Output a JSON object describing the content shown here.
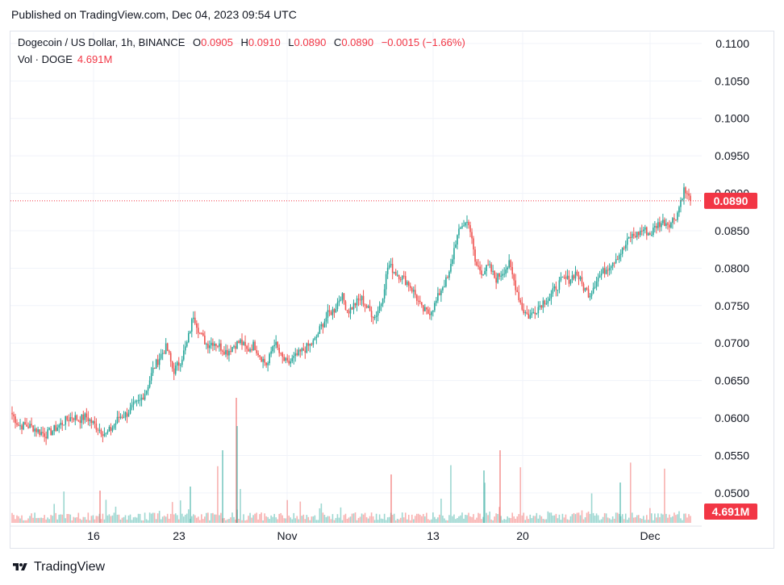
{
  "header": {
    "published": "Published on TradingView.com, Dec 04, 2023 09:54 UTC"
  },
  "legend": {
    "symbol": "Dogecoin / US Dollar, 1h, BINANCE",
    "o_label": "O",
    "o_value": "0.0905",
    "h_label": "H",
    "h_value": "0.0910",
    "l_label": "L",
    "l_value": "0.0890",
    "c_label": "C",
    "c_value": "0.0890",
    "change": "−0.0015 (−1.66%)",
    "vol_label": "Vol · DOGE",
    "vol_value": "4.691M"
  },
  "price_tag": "0.0890",
  "volume_tag": "4.691M",
  "footer": {
    "brand": "TradingView"
  },
  "colors": {
    "up": "#26a69a",
    "down": "#ef5350",
    "last_price": "#f23645",
    "grid": "#f0f3fa",
    "axis_text": "#131722"
  },
  "chart_data": {
    "type": "candlestick",
    "title": "Dogecoin / US Dollar, 1h, BINANCE",
    "x_ticks": [
      "16",
      "23",
      "Nov",
      "13",
      "20",
      "Dec"
    ],
    "y_ticks": [
      "0.1100",
      "0.1050",
      "0.1000",
      "0.0950",
      "0.0900",
      "0.0850",
      "0.0800",
      "0.0750",
      "0.0700",
      "0.0650",
      "0.0600",
      "0.0550",
      "0.0500"
    ],
    "ylim": [
      0.046,
      0.1115
    ],
    "last_price": 0.089,
    "volume_last": "4.691M",
    "grid": true,
    "series": [
      {
        "name": "DOGEUSD",
        "close_path": [
          0.0605,
          0.059,
          0.059,
          0.0588,
          0.0582,
          0.0578,
          0.0583,
          0.059,
          0.0597,
          0.0602,
          0.0598,
          0.0602,
          0.0593,
          0.0585,
          0.0578,
          0.0588,
          0.0602,
          0.0605,
          0.0615,
          0.0622,
          0.0638,
          0.0665,
          0.0682,
          0.0695,
          0.0662,
          0.0675,
          0.0698,
          0.0738,
          0.0712,
          0.0698,
          0.0702,
          0.0695,
          0.0688,
          0.0697,
          0.0702,
          0.069,
          0.0698,
          0.0682,
          0.067,
          0.0703,
          0.0682,
          0.0672,
          0.068,
          0.0688,
          0.0695,
          0.0702,
          0.0722,
          0.0738,
          0.0745,
          0.0765,
          0.0742,
          0.0752,
          0.076,
          0.0745,
          0.0735,
          0.0755,
          0.0805,
          0.0795,
          0.0788,
          0.078,
          0.0765,
          0.0745,
          0.074,
          0.0752,
          0.0775,
          0.0788,
          0.0835,
          0.0858,
          0.0862,
          0.0805,
          0.0795,
          0.0802,
          0.0785,
          0.0795,
          0.0805,
          0.0775,
          0.0745,
          0.0735,
          0.0745,
          0.0755,
          0.076,
          0.0775,
          0.0785,
          0.0785,
          0.0795,
          0.0775,
          0.0765,
          0.0785,
          0.0795,
          0.0805,
          0.0815,
          0.0825,
          0.0842,
          0.0845,
          0.0852,
          0.0845,
          0.0858,
          0.0862,
          0.086,
          0.0872,
          0.0905,
          0.089
        ]
      }
    ],
    "volume_spikes": [
      "12",
      "13",
      "20",
      "27",
      "28",
      "30"
    ]
  }
}
